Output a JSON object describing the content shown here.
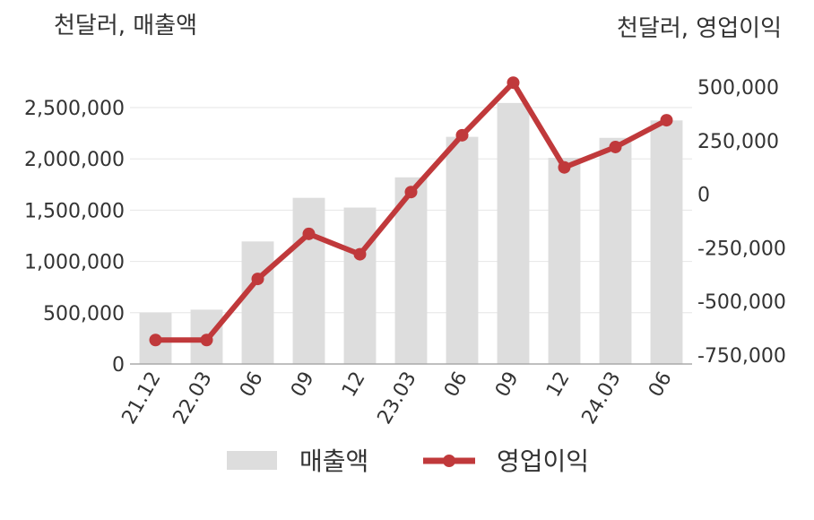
{
  "chart_data": {
    "type": "bar",
    "title": "",
    "left_axis_unit": "천달러, 매출액",
    "right_axis_unit": "천달러, 영업이익",
    "categories": [
      "21.12",
      "22.03",
      "06",
      "09",
      "12",
      "23.03",
      "06",
      "09",
      "12",
      "24.03",
      "06"
    ],
    "series": [
      {
        "name": "매출액",
        "type": "bar",
        "axis": "left",
        "color": "#dddddd",
        "values": [
          500000,
          530000,
          1195000,
          1620000,
          1525000,
          1820000,
          2215000,
          2545000,
          2010000,
          2205000,
          2375000
        ]
      },
      {
        "name": "영업이익",
        "type": "line",
        "axis": "right",
        "color": "#c0393b",
        "values": [
          -680000,
          -680000,
          -395000,
          -185000,
          -280000,
          10000,
          275000,
          520000,
          125000,
          220000,
          345000
        ]
      }
    ],
    "y_left": {
      "min": 0,
      "max": 2500000,
      "ticks": [
        0,
        500000,
        1000000,
        1500000,
        2000000,
        2500000
      ],
      "tick_labels": [
        "0",
        "500,000",
        "1,000,000",
        "1,500,000",
        "2,000,000",
        "2,500,000"
      ]
    },
    "y_right": {
      "min": -750000,
      "max": 500000,
      "ticks": [
        -750000,
        -500000,
        -250000,
        0,
        250000,
        500000
      ],
      "tick_labels": [
        "-750,000",
        "-500,000",
        "-250,000",
        "0",
        "250,000",
        "500,000"
      ]
    },
    "grid": true,
    "legend_position": "bottom"
  }
}
